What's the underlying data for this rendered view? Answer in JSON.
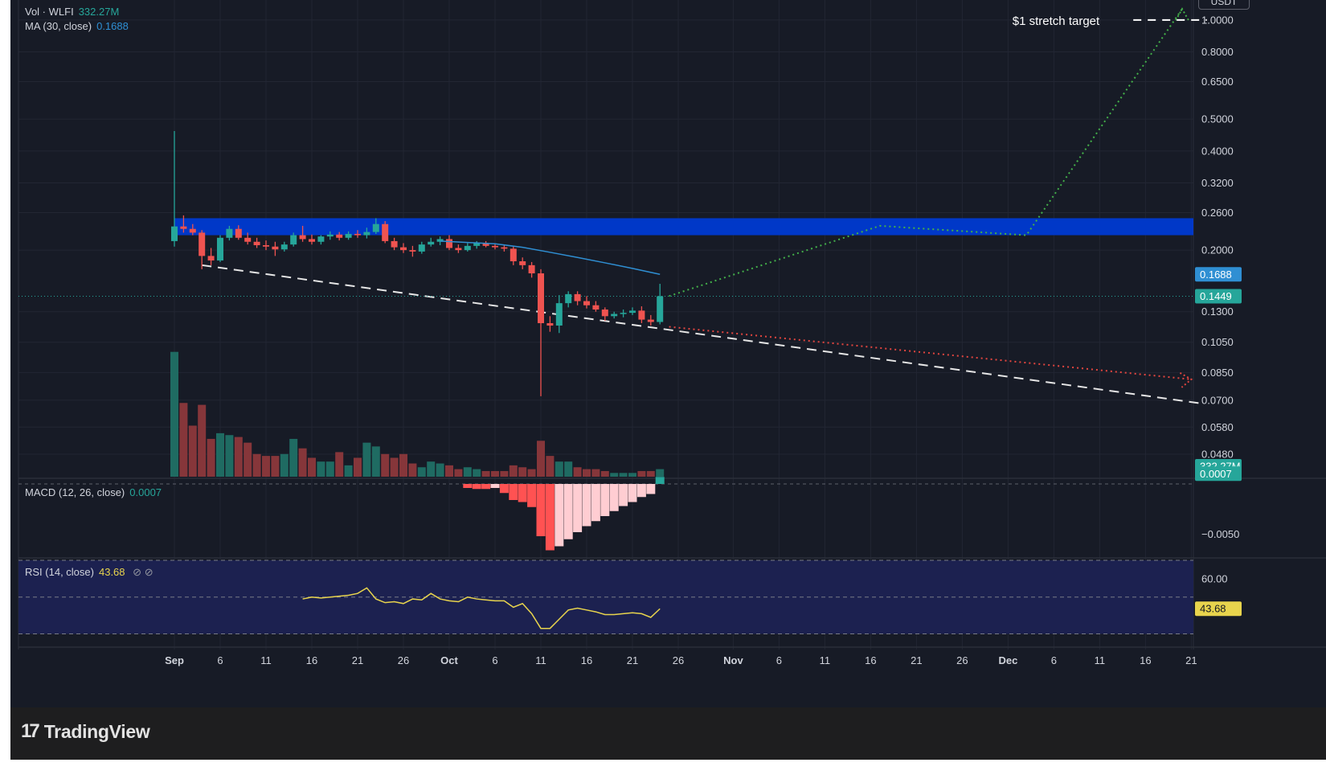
{
  "chart_data": {
    "type": "candlestick",
    "symbol_pair": "USDT",
    "legends": {
      "vol": {
        "label": "Vol · WLFI",
        "value": "332.27M"
      },
      "ma": {
        "label": "MA (30, close)",
        "value": "0.1688"
      },
      "macd": {
        "label": "MACD (12, 26, close)",
        "value": "0.0007"
      },
      "rsi": {
        "label": "RSI (14, close)",
        "value": "43.68"
      }
    },
    "annotation": "$1 stretch target",
    "x_ticks": [
      "Sep",
      "6",
      "11",
      "16",
      "21",
      "26",
      "Oct",
      "6",
      "11",
      "16",
      "21",
      "26",
      "Nov",
      "6",
      "11",
      "16",
      "21",
      "26",
      "Dec",
      "6",
      "11",
      "16",
      "21"
    ],
    "price_axis": {
      "scale": "log",
      "range": [
        0.041,
        1.15
      ],
      "ticks": [
        "1.0000",
        "0.8000",
        "0.6500",
        "0.5000",
        "0.4000",
        "0.3200",
        "0.2600",
        "0.2000",
        "0.1300",
        "0.1050",
        "0.0850",
        "0.0700",
        "0.0580",
        "0.0480"
      ]
    },
    "price_tags": {
      "ma": "0.1688",
      "last": "0.1449",
      "volume": "332.27M",
      "macd": "0.0007",
      "rsi": "43.68"
    },
    "macd_axis": {
      "range": [
        -0.0072,
        0.0004
      ],
      "ticks": [
        "−0.0050"
      ]
    },
    "rsi_axis": {
      "range": [
        25,
        70
      ],
      "ticks": [
        "60.00"
      ],
      "bands": [
        30,
        50,
        70
      ]
    },
    "resistance_zone": [
      0.222,
      0.25
    ],
    "candles": [
      {
        "d": "Sep 1",
        "o": 0.213,
        "h": 0.46,
        "l": 0.205,
        "c": 0.236
      },
      {
        "d": "Sep 2",
        "o": 0.236,
        "h": 0.255,
        "l": 0.226,
        "c": 0.232
      },
      {
        "d": "Sep 3",
        "o": 0.232,
        "h": 0.24,
        "l": 0.222,
        "c": 0.226
      },
      {
        "d": "Sep 4",
        "o": 0.226,
        "h": 0.23,
        "l": 0.175,
        "c": 0.192
      },
      {
        "d": "Sep 5",
        "o": 0.192,
        "h": 0.203,
        "l": 0.18,
        "c": 0.186
      },
      {
        "d": "Sep 6",
        "o": 0.186,
        "h": 0.222,
        "l": 0.184,
        "c": 0.218
      },
      {
        "d": "Sep 7",
        "o": 0.218,
        "h": 0.237,
        "l": 0.214,
        "c": 0.232
      },
      {
        "d": "Sep 8",
        "o": 0.232,
        "h": 0.238,
        "l": 0.215,
        "c": 0.218
      },
      {
        "d": "Sep 9",
        "o": 0.218,
        "h": 0.226,
        "l": 0.208,
        "c": 0.212
      },
      {
        "d": "Sep 10",
        "o": 0.212,
        "h": 0.218,
        "l": 0.203,
        "c": 0.207
      },
      {
        "d": "Sep 11",
        "o": 0.207,
        "h": 0.214,
        "l": 0.2,
        "c": 0.205
      },
      {
        "d": "Sep 12",
        "o": 0.205,
        "h": 0.212,
        "l": 0.192,
        "c": 0.201
      },
      {
        "d": "Sep 13",
        "o": 0.201,
        "h": 0.212,
        "l": 0.198,
        "c": 0.208
      },
      {
        "d": "Sep 14",
        "o": 0.208,
        "h": 0.226,
        "l": 0.205,
        "c": 0.222
      },
      {
        "d": "Sep 15",
        "o": 0.222,
        "h": 0.237,
        "l": 0.212,
        "c": 0.216
      },
      {
        "d": "Sep 16",
        "o": 0.216,
        "h": 0.223,
        "l": 0.208,
        "c": 0.212
      },
      {
        "d": "Sep 17",
        "o": 0.212,
        "h": 0.222,
        "l": 0.208,
        "c": 0.22
      },
      {
        "d": "Sep 18",
        "o": 0.22,
        "h": 0.228,
        "l": 0.215,
        "c": 0.223
      },
      {
        "d": "Sep 19",
        "o": 0.223,
        "h": 0.227,
        "l": 0.214,
        "c": 0.218
      },
      {
        "d": "Sep 20",
        "o": 0.218,
        "h": 0.228,
        "l": 0.215,
        "c": 0.224
      },
      {
        "d": "Sep 21",
        "o": 0.224,
        "h": 0.23,
        "l": 0.218,
        "c": 0.222
      },
      {
        "d": "Sep 22",
        "o": 0.222,
        "h": 0.234,
        "l": 0.217,
        "c": 0.227
      },
      {
        "d": "Sep 23",
        "o": 0.227,
        "h": 0.25,
        "l": 0.224,
        "c": 0.24
      },
      {
        "d": "Sep 24",
        "o": 0.24,
        "h": 0.245,
        "l": 0.21,
        "c": 0.213
      },
      {
        "d": "Sep 25",
        "o": 0.213,
        "h": 0.218,
        "l": 0.2,
        "c": 0.204
      },
      {
        "d": "Sep 26",
        "o": 0.204,
        "h": 0.21,
        "l": 0.196,
        "c": 0.2
      },
      {
        "d": "Sep 27",
        "o": 0.2,
        "h": 0.206,
        "l": 0.191,
        "c": 0.198
      },
      {
        "d": "Sep 28",
        "o": 0.198,
        "h": 0.212,
        "l": 0.195,
        "c": 0.208
      },
      {
        "d": "Sep 29",
        "o": 0.208,
        "h": 0.218,
        "l": 0.205,
        "c": 0.212
      },
      {
        "d": "Sep 30",
        "o": 0.212,
        "h": 0.22,
        "l": 0.207,
        "c": 0.216
      },
      {
        "d": "Oct 1",
        "o": 0.216,
        "h": 0.222,
        "l": 0.2,
        "c": 0.203
      },
      {
        "d": "Oct 2",
        "o": 0.203,
        "h": 0.208,
        "l": 0.196,
        "c": 0.2
      },
      {
        "d": "Oct 3",
        "o": 0.2,
        "h": 0.21,
        "l": 0.198,
        "c": 0.206
      },
      {
        "d": "Oct 4",
        "o": 0.206,
        "h": 0.213,
        "l": 0.202,
        "c": 0.21
      },
      {
        "d": "Oct 5",
        "o": 0.21,
        "h": 0.213,
        "l": 0.204,
        "c": 0.206
      },
      {
        "d": "Oct 6",
        "o": 0.206,
        "h": 0.209,
        "l": 0.201,
        "c": 0.204
      },
      {
        "d": "Oct 7",
        "o": 0.204,
        "h": 0.207,
        "l": 0.198,
        "c": 0.202
      },
      {
        "d": "Oct 8",
        "o": 0.202,
        "h": 0.206,
        "l": 0.18,
        "c": 0.185
      },
      {
        "d": "Oct 9",
        "o": 0.185,
        "h": 0.19,
        "l": 0.175,
        "c": 0.18
      },
      {
        "d": "Oct 10",
        "o": 0.18,
        "h": 0.184,
        "l": 0.165,
        "c": 0.17
      },
      {
        "d": "Oct 11",
        "o": 0.17,
        "h": 0.175,
        "l": 0.072,
        "c": 0.12
      },
      {
        "d": "Oct 12",
        "o": 0.12,
        "h": 0.126,
        "l": 0.113,
        "c": 0.118
      },
      {
        "d": "Oct 13",
        "o": 0.118,
        "h": 0.146,
        "l": 0.112,
        "c": 0.138
      },
      {
        "d": "Oct 14",
        "o": 0.138,
        "h": 0.15,
        "l": 0.134,
        "c": 0.147
      },
      {
        "d": "Oct 15",
        "o": 0.147,
        "h": 0.15,
        "l": 0.136,
        "c": 0.14
      },
      {
        "d": "Oct 16",
        "o": 0.14,
        "h": 0.145,
        "l": 0.133,
        "c": 0.136
      },
      {
        "d": "Oct 17",
        "o": 0.136,
        "h": 0.14,
        "l": 0.13,
        "c": 0.132
      },
      {
        "d": "Oct 18",
        "o": 0.132,
        "h": 0.134,
        "l": 0.122,
        "c": 0.126
      },
      {
        "d": "Oct 19",
        "o": 0.126,
        "h": 0.13,
        "l": 0.124,
        "c": 0.128
      },
      {
        "d": "Oct 20",
        "o": 0.128,
        "h": 0.132,
        "l": 0.125,
        "c": 0.129
      },
      {
        "d": "Oct 21",
        "o": 0.129,
        "h": 0.134,
        "l": 0.127,
        "c": 0.131
      },
      {
        "d": "Oct 22",
        "o": 0.131,
        "h": 0.135,
        "l": 0.12,
        "c": 0.123
      },
      {
        "d": "Oct 23",
        "o": 0.123,
        "h": 0.127,
        "l": 0.118,
        "c": 0.121
      },
      {
        "d": "Oct 24",
        "o": 0.121,
        "h": 0.158,
        "l": 0.119,
        "c": 0.1449
      }
    ],
    "ma30": [
      {
        "d": "Sep 30",
        "v": 0.213
      },
      {
        "d": "Oct 3",
        "v": 0.211
      },
      {
        "d": "Oct 6",
        "v": 0.209
      },
      {
        "d": "Oct 9",
        "v": 0.204
      },
      {
        "d": "Oct 12",
        "v": 0.197
      },
      {
        "d": "Oct 15",
        "v": 0.19
      },
      {
        "d": "Oct 18",
        "v": 0.183
      },
      {
        "d": "Oct 21",
        "v": 0.176
      },
      {
        "d": "Oct 24",
        "v": 0.1688
      }
    ],
    "volume": [
      6.6,
      3.9,
      2.7,
      3.8,
      2.0,
      2.3,
      2.2,
      2.1,
      1.8,
      1.2,
      1.1,
      1.1,
      1.2,
      2.0,
      1.5,
      1.0,
      0.8,
      0.8,
      1.3,
      0.6,
      1.0,
      1.8,
      1.6,
      1.2,
      1.0,
      1.2,
      0.7,
      0.5,
      0.8,
      0.7,
      0.6,
      0.4,
      0.5,
      0.4,
      0.3,
      0.3,
      0.3,
      0.6,
      0.5,
      0.4,
      1.9,
      1.1,
      0.8,
      0.8,
      0.5,
      0.4,
      0.4,
      0.3,
      0.2,
      0.2,
      0.2,
      0.3,
      0.3,
      0.4
    ],
    "macd_hist": [
      {
        "d": "Oct 3",
        "v": -0.0004
      },
      {
        "d": "Oct 4",
        "v": -0.0005
      },
      {
        "d": "Oct 5",
        "v": -0.0005
      },
      {
        "d": "Oct 6",
        "v": -0.0004
      },
      {
        "d": "Oct 7",
        "v": -0.0009
      },
      {
        "d": "Oct 8",
        "v": -0.0016
      },
      {
        "d": "Oct 9",
        "v": -0.0018
      },
      {
        "d": "Oct 10",
        "v": -0.0023
      },
      {
        "d": "Oct 11",
        "v": -0.0052
      },
      {
        "d": "Oct 12",
        "v": -0.0066
      },
      {
        "d": "Oct 13",
        "v": -0.0062
      },
      {
        "d": "Oct 14",
        "v": -0.0055
      },
      {
        "d": "Oct 15",
        "v": -0.0048
      },
      {
        "d": "Oct 16",
        "v": -0.0042
      },
      {
        "d": "Oct 17",
        "v": -0.0037
      },
      {
        "d": "Oct 18",
        "v": -0.0032
      },
      {
        "d": "Oct 19",
        "v": -0.0027
      },
      {
        "d": "Oct 20",
        "v": -0.0022
      },
      {
        "d": "Oct 21",
        "v": -0.0018
      },
      {
        "d": "Oct 22",
        "v": -0.0013
      },
      {
        "d": "Oct 23",
        "v": -0.001
      },
      {
        "d": "Oct 24",
        "v": 0.0007
      }
    ],
    "rsi": [
      {
        "d": "Sep 15",
        "v": 49
      },
      {
        "d": "Sep 16",
        "v": 50
      },
      {
        "d": "Sep 17",
        "v": 49.5
      },
      {
        "d": "Sep 18",
        "v": 50
      },
      {
        "d": "Sep 19",
        "v": 50.5
      },
      {
        "d": "Sep 20",
        "v": 51
      },
      {
        "d": "Sep 21",
        "v": 52
      },
      {
        "d": "Sep 22",
        "v": 55
      },
      {
        "d": "Sep 23",
        "v": 49
      },
      {
        "d": "Sep 24",
        "v": 47
      },
      {
        "d": "Sep 25",
        "v": 47.5
      },
      {
        "d": "Sep 26",
        "v": 46.5
      },
      {
        "d": "Sep 27",
        "v": 49
      },
      {
        "d": "Sep 28",
        "v": 48.5
      },
      {
        "d": "Sep 29",
        "v": 52
      },
      {
        "d": "Sep 30",
        "v": 49
      },
      {
        "d": "Oct 1",
        "v": 48
      },
      {
        "d": "Oct 2",
        "v": 47.5
      },
      {
        "d": "Oct 3",
        "v": 50
      },
      {
        "d": "Oct 4",
        "v": 49
      },
      {
        "d": "Oct 5",
        "v": 48.5
      },
      {
        "d": "Oct 6",
        "v": 48
      },
      {
        "d": "Oct 7",
        "v": 48
      },
      {
        "d": "Oct 8",
        "v": 44.5
      },
      {
        "d": "Oct 9",
        "v": 46.5
      },
      {
        "d": "Oct 10",
        "v": 41
      },
      {
        "d": "Oct 11",
        "v": 33
      },
      {
        "d": "Oct 12",
        "v": 33
      },
      {
        "d": "Oct 13",
        "v": 38
      },
      {
        "d": "Oct 14",
        "v": 43
      },
      {
        "d": "Oct 15",
        "v": 44
      },
      {
        "d": "Oct 16",
        "v": 43
      },
      {
        "d": "Oct 17",
        "v": 42
      },
      {
        "d": "Oct 18",
        "v": 40.5
      },
      {
        "d": "Oct 19",
        "v": 40.5
      },
      {
        "d": "Oct 20",
        "v": 41
      },
      {
        "d": "Oct 21",
        "v": 41.5
      },
      {
        "d": "Oct 22",
        "v": 41
      },
      {
        "d": "Oct 23",
        "v": 39
      },
      {
        "d": "Oct 24",
        "v": 43.68
      }
    ],
    "trendline": [
      {
        "d": "Sep 4",
        "v": 0.18
      },
      {
        "d": "Dec 22",
        "v": 0.0685
      }
    ],
    "bullish_path": [
      {
        "d": "Oct 25",
        "v": 0.145
      },
      {
        "d": "Nov 17",
        "v": 0.237
      },
      {
        "d": "Dec 3",
        "v": 0.222
      },
      {
        "d": "Dec 20",
        "v": 1.08
      }
    ],
    "bearish_path": [
      {
        "d": "Oct 25",
        "v": 0.117
      },
      {
        "d": "Dec 21",
        "v": 0.081
      }
    ],
    "target_line": {
      "from": "Dec 18",
      "to": "Dec 22",
      "v": 1.0
    }
  },
  "branding": {
    "logo_mark": "17",
    "name": "TradingView"
  },
  "colors": {
    "up": "#26a69a",
    "down": "#ef5350",
    "vol_up": "#1f6b62",
    "vol_down": "#86363a",
    "ma": "#2f8fd3",
    "zone": "#0038c8",
    "rsi": "#e8d44d",
    "macd_dark": "#ff5252",
    "macd_light": "#ffcdd2",
    "bull": "#43b04a",
    "bear": "#e2453f"
  }
}
